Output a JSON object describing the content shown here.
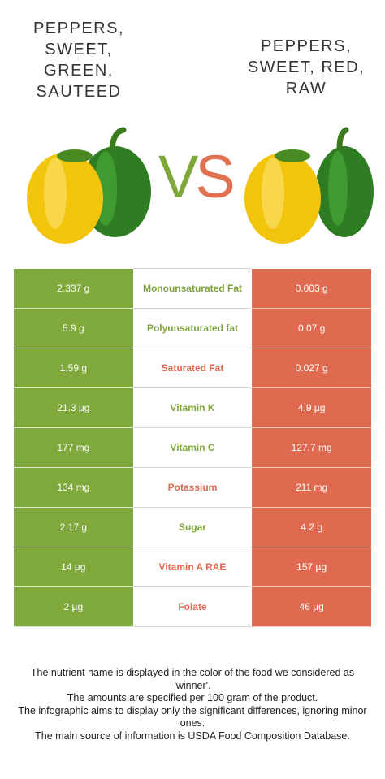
{
  "left_food": {
    "title": "PEPPERS, SWEET, GREEN, SAUTEED"
  },
  "right_food": {
    "title": "PEPPERS, SWEET, RED, RAW"
  },
  "vs": {
    "v": "V",
    "s": "S"
  },
  "colors": {
    "green": "#80a93b",
    "red": "#e06a4f"
  },
  "rows": [
    {
      "left": "2.337 g",
      "name": "Monounsaturated Fat",
      "right": "0.003 g",
      "winner": "green"
    },
    {
      "left": "5.9 g",
      "name": "Polyunsaturated fat",
      "right": "0.07 g",
      "winner": "green"
    },
    {
      "left": "1.59 g",
      "name": "Saturated Fat",
      "right": "0.027 g",
      "winner": "red"
    },
    {
      "left": "21.3 µg",
      "name": "Vitamin K",
      "right": "4.9 µg",
      "winner": "green"
    },
    {
      "left": "177 mg",
      "name": "Vitamin C",
      "right": "127.7 mg",
      "winner": "green"
    },
    {
      "left": "134 mg",
      "name": "Potassium",
      "right": "211 mg",
      "winner": "red"
    },
    {
      "left": "2.17 g",
      "name": "Sugar",
      "right": "4.2 g",
      "winner": "green"
    },
    {
      "left": "14 µg",
      "name": "Vitamin A RAE",
      "right": "157 µg",
      "winner": "red"
    },
    {
      "left": "2 µg",
      "name": "Folate",
      "right": "46 µg",
      "winner": "red"
    }
  ],
  "footer": {
    "line1": "The nutrient name is displayed in the color of the food we considered as 'winner'.",
    "line2": "The amounts are specified per 100 gram of the product.",
    "line3": "The infographic aims to display only the significant differences, ignoring minor ones.",
    "line4": "The main source of information is USDA Food Composition Database."
  }
}
